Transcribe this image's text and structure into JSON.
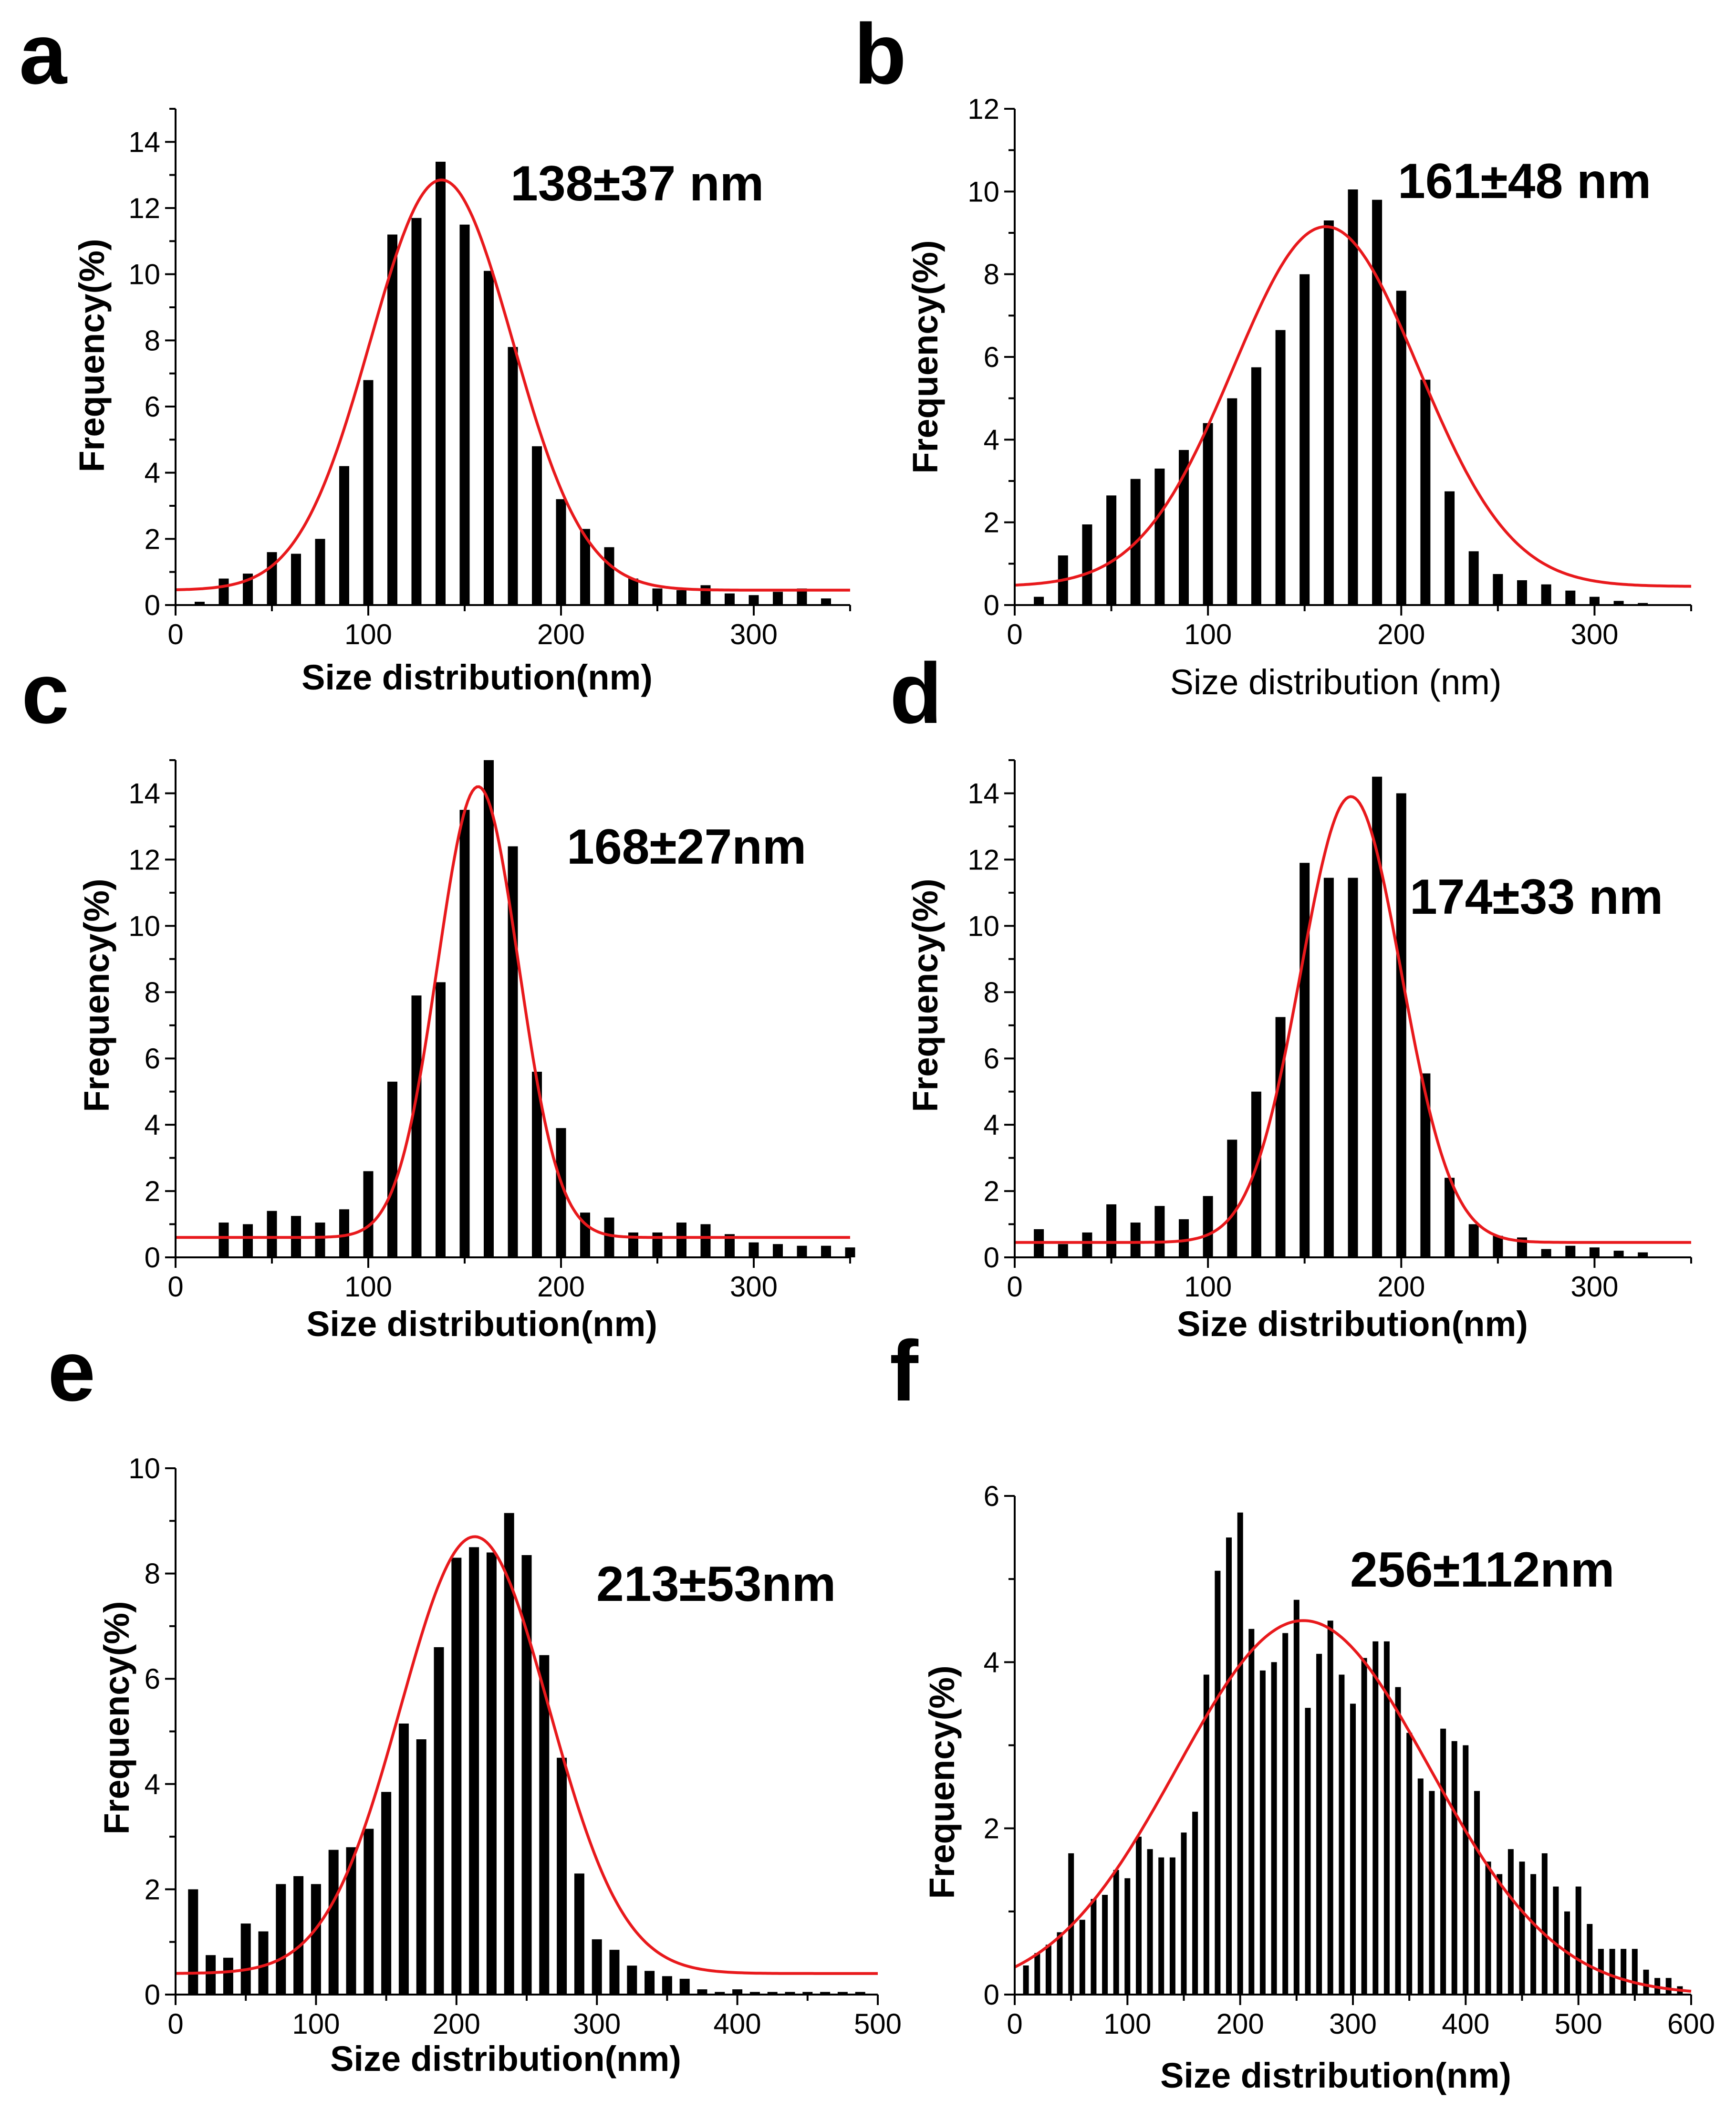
{
  "figure": {
    "panels": [
      "a",
      "b",
      "c",
      "d",
      "e",
      "f"
    ]
  },
  "chart_data": [
    {
      "panel": "a",
      "type": "bar",
      "annotation": "138±37 nm",
      "xlabel": "Size distribution(nm)",
      "ylabel": "Frequency(%)",
      "xlim": [
        0,
        350
      ],
      "ylim": [
        0,
        15
      ],
      "xticks": [
        0,
        100,
        200,
        300
      ],
      "yticks": [
        0,
        2,
        4,
        6,
        8,
        10,
        12,
        14
      ],
      "bin_centers": [
        12.5,
        25,
        37.5,
        50,
        62.5,
        75,
        87.5,
        100,
        112.5,
        125,
        137.5,
        150,
        162.5,
        175,
        187.5,
        200,
        212.5,
        225,
        237.5,
        250,
        262.5,
        275,
        287.5,
        300,
        312.5,
        325,
        337.5
      ],
      "values": [
        0.1,
        0.8,
        0.95,
        1.6,
        1.55,
        2.0,
        4.2,
        6.8,
        11.2,
        11.7,
        13.4,
        11.5,
        10.1,
        7.8,
        4.8,
        3.2,
        2.3,
        1.75,
        0.8,
        0.5,
        0.45,
        0.6,
        0.35,
        0.3,
        0.4,
        0.5,
        0.2
      ],
      "fit": {
        "type": "gaussian",
        "center": 138,
        "sigma": 37,
        "baseline": 0.45,
        "peak": 12.85
      }
    },
    {
      "panel": "b",
      "type": "bar",
      "annotation": "161±48 nm",
      "xlabel": "Size distribution (nm)",
      "ylabel": "Frequency(%)",
      "xlim": [
        0,
        350
      ],
      "ylim": [
        0,
        12
      ],
      "xticks": [
        0,
        100,
        200,
        300
      ],
      "yticks": [
        0,
        2,
        4,
        6,
        8,
        10,
        12
      ],
      "bin_centers": [
        12.5,
        25,
        37.5,
        50,
        62.5,
        75,
        87.5,
        100,
        112.5,
        125,
        137.5,
        150,
        162.5,
        175,
        187.5,
        200,
        212.5,
        225,
        237.5,
        250,
        262.5,
        275,
        287.5,
        300,
        312.5,
        325
      ],
      "values": [
        0.2,
        1.2,
        1.95,
        2.65,
        3.05,
        3.3,
        3.75,
        4.4,
        5.0,
        5.75,
        6.65,
        8.0,
        9.3,
        10.05,
        9.8,
        7.6,
        5.45,
        2.75,
        1.3,
        0.75,
        0.6,
        0.5,
        0.35,
        0.2,
        0.1,
        0.05
      ],
      "fit": {
        "type": "gaussian",
        "center": 161,
        "sigma": 48,
        "baseline": 0.45,
        "peak": 9.15
      }
    },
    {
      "panel": "c",
      "type": "bar",
      "annotation": "168±27nm",
      "xlabel": "Size distribution(nm)",
      "ylabel": "Frequency(%)",
      "xlim": [
        0,
        350
      ],
      "ylim": [
        0,
        15
      ],
      "xticks": [
        0,
        100,
        200,
        300
      ],
      "yticks": [
        0,
        2,
        4,
        6,
        8,
        10,
        12,
        14
      ],
      "bin_centers": [
        25,
        37.5,
        50,
        62.5,
        75,
        87.5,
        100,
        112.5,
        125,
        137.5,
        150,
        162.5,
        175,
        187.5,
        200,
        212.5,
        225,
        237.5,
        250,
        262.5,
        275,
        287.5,
        300,
        312.5,
        325,
        337.5,
        350
      ],
      "values": [
        1.05,
        1.0,
        1.4,
        1.25,
        1.05,
        1.45,
        2.6,
        5.3,
        7.9,
        8.3,
        13.5,
        15.0,
        12.4,
        5.6,
        3.9,
        1.35,
        1.2,
        0.75,
        0.75,
        1.05,
        1.0,
        0.7,
        0.45,
        0.4,
        0.35,
        0.35,
        0.3
      ],
      "fit": {
        "type": "gaussian",
        "center": 157,
        "sigma": 21,
        "baseline": 0.6,
        "peak": 14.2
      }
    },
    {
      "panel": "d",
      "type": "bar",
      "annotation": "174±33 nm",
      "xlabel": "Size distribution(nm)",
      "ylabel": "Frequency(%)",
      "xlim": [
        0,
        350
      ],
      "ylim": [
        0,
        15
      ],
      "xticks": [
        0,
        100,
        200,
        300
      ],
      "yticks": [
        0,
        2,
        4,
        6,
        8,
        10,
        12,
        14
      ],
      "bin_centers": [
        12.5,
        25,
        37.5,
        50,
        62.5,
        75,
        87.5,
        100,
        112.5,
        125,
        137.5,
        150,
        162.5,
        175,
        187.5,
        200,
        212.5,
        225,
        237.5,
        250,
        262.5,
        275,
        287.5,
        300,
        312.5,
        325
      ],
      "values": [
        0.85,
        0.4,
        0.75,
        1.6,
        1.05,
        1.55,
        1.15,
        1.85,
        3.55,
        5.0,
        7.25,
        11.9,
        11.45,
        11.45,
        14.5,
        14.0,
        5.55,
        2.4,
        1.0,
        0.65,
        0.6,
        0.25,
        0.35,
        0.3,
        0.2,
        0.15
      ],
      "fit": {
        "type": "gaussian",
        "center": 174,
        "sigma": 26,
        "baseline": 0.45,
        "peak": 13.9
      }
    },
    {
      "panel": "e",
      "type": "bar",
      "annotation": "213±53nm",
      "xlabel": "Size distribution(nm)",
      "ylabel": "Frequency(%)",
      "xlim": [
        0,
        500
      ],
      "ylim": [
        0,
        10
      ],
      "xticks": [
        0,
        100,
        200,
        300,
        400,
        500
      ],
      "yticks": [
        0,
        2,
        4,
        6,
        8,
        10
      ],
      "bin_centers": [
        12.5,
        25,
        37.5,
        50,
        62.5,
        75,
        87.5,
        100,
        112.5,
        125,
        137.5,
        150,
        162.5,
        175,
        187.5,
        200,
        212.5,
        225,
        237.5,
        250,
        262.5,
        275,
        287.5,
        300,
        312.5,
        325,
        337.5,
        350,
        362.5,
        375,
        387.5,
        400,
        412.5,
        425,
        437.5,
        450,
        462.5,
        475,
        487.5
      ],
      "values": [
        2.0,
        0.75,
        0.7,
        1.35,
        1.2,
        2.1,
        2.25,
        2.1,
        2.75,
        2.8,
        3.15,
        3.85,
        5.15,
        4.85,
        6.6,
        8.3,
        8.5,
        8.4,
        9.15,
        8.35,
        6.45,
        4.5,
        2.3,
        1.05,
        0.85,
        0.55,
        0.45,
        0.35,
        0.3,
        0.1,
        0.05,
        0.1,
        0.05,
        0.05,
        0.05,
        0.05,
        0.05,
        0.05,
        0.05
      ],
      "fit": {
        "type": "gaussian",
        "center": 213,
        "sigma": 53,
        "baseline": 0.4,
        "peak": 8.7
      }
    },
    {
      "panel": "f",
      "type": "bar",
      "annotation": "256±112nm",
      "xlabel": "Size distribution(nm)",
      "ylabel": "Frequency(%)",
      "xlim": [
        0,
        600
      ],
      "ylim": [
        0,
        6
      ],
      "xticks": [
        0,
        100,
        200,
        300,
        400,
        500,
        600
      ],
      "yticks": [
        0,
        2,
        4,
        6
      ],
      "bin_centers": [
        10,
        20,
        30,
        40,
        50,
        60,
        70,
        80,
        90,
        100,
        110,
        120,
        130,
        140,
        150,
        160,
        170,
        180,
        190,
        200,
        210,
        220,
        230,
        240,
        250,
        260,
        270,
        280,
        290,
        300,
        310,
        320,
        330,
        340,
        350,
        360,
        370,
        380,
        390,
        400,
        410,
        420,
        430,
        440,
        450,
        460,
        470,
        480,
        490,
        500,
        510,
        520,
        530,
        540,
        550,
        560,
        570,
        580,
        590
      ],
      "values": [
        0.35,
        0.5,
        0.6,
        0.75,
        1.7,
        0.9,
        1.15,
        1.2,
        1.5,
        1.4,
        1.9,
        1.75,
        1.65,
        1.65,
        1.95,
        2.2,
        3.85,
        5.1,
        5.5,
        5.8,
        4.4,
        3.9,
        4.0,
        4.35,
        4.75,
        3.45,
        4.1,
        4.5,
        3.85,
        3.5,
        4.05,
        4.25,
        4.25,
        3.7,
        3.15,
        2.6,
        2.45,
        3.2,
        3.05,
        3.0,
        2.45,
        1.6,
        1.45,
        1.75,
        1.6,
        1.45,
        1.7,
        1.3,
        1.0,
        1.3,
        0.85,
        0.55,
        0.55,
        0.55,
        0.55,
        0.3,
        0.2,
        0.2,
        0.1
      ],
      "fit": {
        "type": "gaussian",
        "center": 256,
        "sigma": 112,
        "baseline": 0.0,
        "peak": 4.5
      }
    }
  ]
}
